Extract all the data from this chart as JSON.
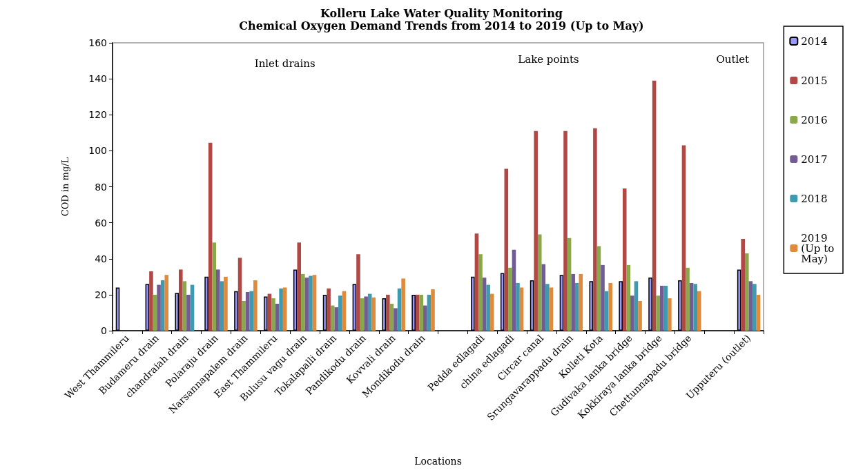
{
  "chart_data": {
    "type": "bar",
    "title": "Kolleru Lake Water Quality Monitoring",
    "subtitle": "Chemical Oxygen Demand Trends from 2014 to 2019 (Up to May)",
    "xlabel": "Locations",
    "ylabel": "COD in mg/L",
    "annotations": [
      "Inlet drains",
      "Lake points",
      "Outlet"
    ],
    "categories": [
      "West Thammileru",
      "Budameru drain",
      "chandraiah drain",
      "Polaraju drain",
      "Narsannapalem drain",
      "East Thammileru",
      "Bulusu vagu drain",
      "Tokalapalli drain",
      "Pandikodu drain",
      "Kovvali drain",
      "Mondikodu drain",
      null,
      "Pedda edlagadi",
      "china edlagadi",
      "Circar canal",
      "Srungavarappadu drain",
      "Kolleti Kota",
      "Gudivaka lanka bridge",
      "Kokkiraya lanka bridge",
      "Chettunnapadu bridge",
      null,
      "Upputeru (outlet)"
    ],
    "series": [
      {
        "name": "2014",
        "color": "#9999ff",
        "values": [
          24,
          26,
          21,
          30,
          22,
          19,
          34,
          20,
          26,
          18,
          20,
          null,
          30,
          32,
          28,
          31,
          27.5,
          27.5,
          29.5,
          28,
          null,
          34
        ]
      },
      {
        "name": "2015",
        "color": "#b04846",
        "values": [
          null,
          33,
          34,
          104.5,
          40.5,
          20.5,
          49,
          23.5,
          42.5,
          20,
          20,
          null,
          54,
          90,
          111,
          111,
          112.5,
          79,
          139,
          103,
          null,
          51
        ]
      },
      {
        "name": "2016",
        "color": "#8aa84b",
        "values": [
          null,
          20,
          27.5,
          49,
          16.5,
          18,
          31.5,
          14,
          18,
          15,
          20,
          null,
          42.5,
          35,
          53.5,
          51.5,
          47,
          36.5,
          19.5,
          35,
          null,
          43
        ]
      },
      {
        "name": "2017",
        "color": "#735b93",
        "values": [
          null,
          25.5,
          20,
          34,
          21.5,
          15,
          29.5,
          13,
          19,
          12.5,
          14,
          null,
          29.5,
          45,
          37,
          31.5,
          36.5,
          19.5,
          25,
          26.5,
          null,
          27.5
        ]
      },
      {
        "name": "2018",
        "color": "#3f9ab0",
        "values": [
          null,
          28,
          25.5,
          27.5,
          22,
          23.5,
          30.5,
          19.5,
          20.5,
          23.5,
          20,
          null,
          25.5,
          26.5,
          26,
          26.5,
          22,
          27.5,
          25,
          26,
          null,
          26
        ]
      },
      {
        "name": "2019 (Up to May)",
        "color": "#e08a3c",
        "values": [
          null,
          31,
          null,
          30,
          28,
          24,
          31,
          22,
          18.5,
          29,
          23,
          null,
          20.5,
          24,
          24,
          31.5,
          26.5,
          16.5,
          18,
          22,
          null,
          20
        ]
      }
    ],
    "ylim": [
      0,
      160
    ],
    "yticks": [
      0,
      20,
      40,
      60,
      80,
      100,
      120,
      140,
      160
    ],
    "grid": false,
    "legend": "right"
  }
}
